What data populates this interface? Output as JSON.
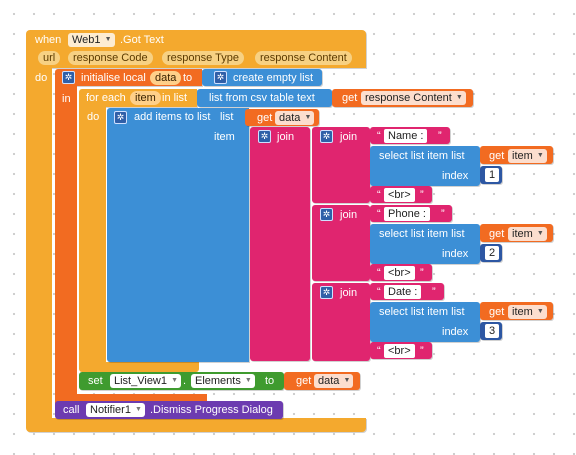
{
  "event": {
    "when_label": "when",
    "component": "Web1",
    "event_name": ".Got Text",
    "params": [
      "url",
      "response Code",
      "response Type",
      "response Content"
    ],
    "do_label": "do"
  },
  "init_local": {
    "label": "initialise local",
    "var": "data",
    "to_label": "to",
    "in_label": "in",
    "create_label": "create empty list"
  },
  "for_each": {
    "label": "for each",
    "var": "item",
    "in_list_label": "in list",
    "do_label": "do",
    "csv_label": "list from csv table  text",
    "get_label": "get",
    "get_value": "response Content"
  },
  "add_items": {
    "label": "add items to list",
    "list_label": "list",
    "get_label": "get",
    "get_value": "data",
    "item_label": "item"
  },
  "join_label": "join",
  "quote_open": "“",
  "quote_close": "”",
  "rows": [
    {
      "text": "Name : ",
      "select_label": "select list item  list",
      "get_label": "get",
      "get_value": "item",
      "index_label": "index",
      "index_value": "1",
      "br": "<br>"
    },
    {
      "text": "Phone : ",
      "select_label": "select list item  list",
      "get_label": "get",
      "get_value": "item",
      "index_label": "index",
      "index_value": "2",
      "br": "<br>"
    },
    {
      "text": "Date : ",
      "select_label": "select list item  list",
      "get_label": "get",
      "get_value": "item",
      "index_label": "index",
      "index_value": "3",
      "br": "<br>"
    }
  ],
  "set_block": {
    "set_label": "set",
    "component": "List_View1",
    "dot": ".",
    "property": "Elements",
    "to_label": "to",
    "get_label": "get",
    "get_value": "data"
  },
  "call_block": {
    "call_label": "call",
    "component": "Notifier1",
    "method": ".Dismiss Progress Dialog"
  },
  "colors": {
    "event": "#f4a92e",
    "variable": "#f26b21",
    "control": "#f4a92e",
    "list": "#3c8fd6",
    "text": "#e0256f",
    "component_set": "#3f9b2f",
    "component_call": "#6c3bb0",
    "number": "#2d57a3"
  }
}
